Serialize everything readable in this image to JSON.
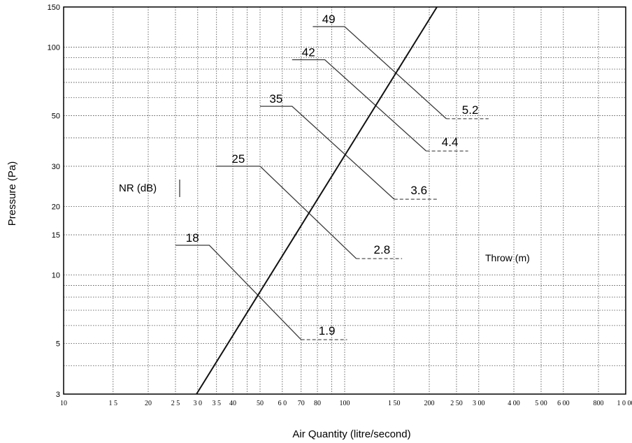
{
  "chart_data": {
    "type": "line",
    "title": "",
    "xlabel": "Air Quantity (litre/second)",
    "ylabel": "Pressure (Pa)",
    "x_scale": "log",
    "y_scale": "log",
    "xlim": [
      10,
      1000
    ],
    "ylim": [
      3,
      150
    ],
    "grid": true,
    "x_ticks": [
      10,
      15,
      20,
      25,
      30,
      35,
      40,
      50,
      60,
      70,
      80,
      100,
      150,
      200,
      250,
      300,
      400,
      500,
      600,
      800,
      1000
    ],
    "x_tick_labels": [
      "10",
      "1 5",
      "20",
      "2 5",
      "3 0",
      "3 5",
      "40",
      "50",
      "6 0",
      "70",
      "80",
      "100",
      "1 50",
      "200",
      "2 50",
      "3 00",
      "4 00",
      "5 00",
      "6 00",
      "800",
      "1 0 00"
    ],
    "y_ticks": [
      3,
      5,
      10,
      15,
      20,
      30,
      50,
      100,
      150
    ],
    "y_tick_labels": [
      "3",
      "5",
      "10",
      "15",
      "20",
      "30",
      "50",
      "100",
      "150"
    ],
    "x_minor_ticks": [
      45,
      90
    ],
    "y_minor_ticks": [
      4,
      6,
      7,
      8,
      9,
      40,
      60,
      70,
      80,
      90
    ],
    "annotations": [
      "NR (dB)",
      "Throw (m)"
    ],
    "main_line": {
      "x": [
        29.7,
        213
      ],
      "y": [
        3,
        150
      ]
    },
    "nr_curves": [
      {
        "label": "18",
        "solid": [
          [
            25,
            13.5
          ],
          [
            33,
            13.5
          ],
          [
            70,
            5.2
          ]
        ],
        "dashed_label": "1.9",
        "dashed": [
          [
            70,
            5.2
          ],
          [
            102,
            5.2
          ]
        ]
      },
      {
        "label": "25",
        "solid": [
          [
            35,
            30
          ],
          [
            50,
            30
          ],
          [
            110,
            11.8
          ]
        ],
        "dashed_label": "2.8",
        "dashed": [
          [
            110,
            11.8
          ],
          [
            160,
            11.8
          ]
        ]
      },
      {
        "label": "35",
        "solid": [
          [
            50,
            55
          ],
          [
            65,
            55
          ],
          [
            150,
            21.5
          ]
        ],
        "dashed_label": "3.6",
        "dashed": [
          [
            150,
            21.5
          ],
          [
            215,
            21.5
          ]
        ]
      },
      {
        "label": "42",
        "solid": [
          [
            65,
            88
          ],
          [
            85,
            88
          ],
          [
            195,
            35
          ]
        ],
        "dashed_label": "4.4",
        "dashed": [
          [
            195,
            35
          ],
          [
            275,
            35
          ]
        ]
      },
      {
        "label": "49",
        "solid": [
          [
            77,
            123
          ],
          [
            100,
            123
          ],
          [
            230,
            48.5
          ]
        ],
        "dashed_label": "5.2",
        "dashed": [
          [
            230,
            48.5
          ],
          [
            325,
            48.5
          ]
        ]
      }
    ]
  }
}
